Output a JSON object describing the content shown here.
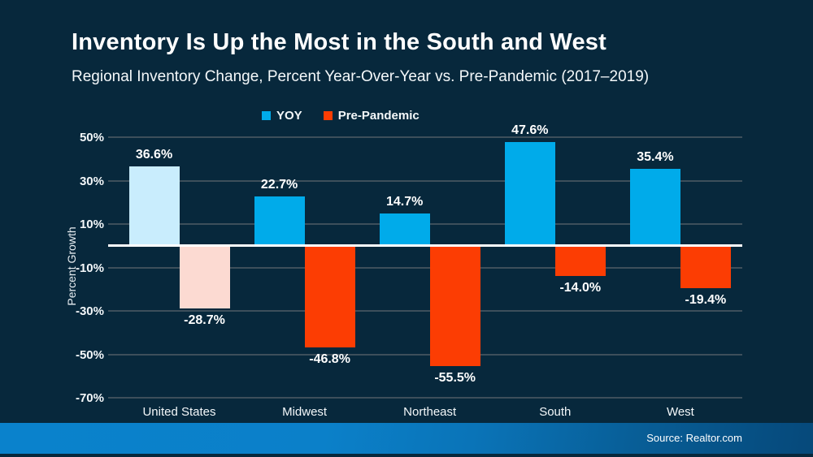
{
  "header": {
    "title": "Inventory Is Up the Most in the South and West",
    "subtitle": "Regional Inventory Change, Percent Year-Over-Year vs. Pre-Pandemic (2017–2019)"
  },
  "chart_data": {
    "type": "bar",
    "title": "Inventory Is Up the Most in the South and West",
    "subtitle": "Regional Inventory Change, Percent Year-Over-Year vs. Pre-Pandemic (2017–2019)",
    "categories": [
      "United States",
      "Midwest",
      "Northeast",
      "South",
      "West"
    ],
    "series": [
      {
        "name": "YOY",
        "legend_color": "#00abea",
        "values": [
          36.6,
          22.7,
          14.7,
          47.6,
          35.4
        ],
        "bar_colors": [
          "#c9edfd",
          "#00abea",
          "#00abea",
          "#00abea",
          "#00abea"
        ]
      },
      {
        "name": "Pre-Pandemic",
        "legend_color": "#fc3d03",
        "values": [
          -28.7,
          -46.8,
          -55.5,
          -14.0,
          -19.4
        ],
        "bar_colors": [
          "#fcdad2",
          "#fc3d03",
          "#fc3d03",
          "#fc3d03",
          "#fc3d03"
        ]
      }
    ],
    "ylabel": "Percent Growth",
    "xlabel": "",
    "ylim": [
      -70,
      50
    ],
    "yticks": [
      50,
      30,
      10,
      -10,
      -30,
      -50,
      -70
    ],
    "ytick_suffix": "%",
    "grid": true,
    "legend_position": "top",
    "note": "United States bars are shown in muted/pale colors; regional bars in saturated colors"
  },
  "colors": {
    "background": "#07283c",
    "grid_line": "#3d4f5b",
    "zero_line": "#ffffff",
    "text": "#ffffff",
    "footer_bar": "#0a82cc"
  },
  "footer": {
    "source": "Source: Realtor.com"
  }
}
